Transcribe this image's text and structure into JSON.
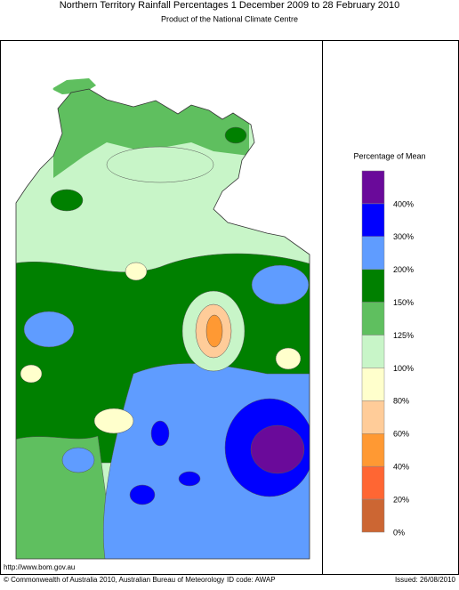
{
  "header": {
    "title": "Northern Territory Rainfall Percentages 1 December 2009 to 28 February 2010",
    "subtitle": "Product of the National Climate Centre"
  },
  "legend": {
    "title": "Percentage of Mean",
    "items": [
      {
        "label": "400%",
        "color": "#6a0a9a"
      },
      {
        "label": "300%",
        "color": "#0000ff"
      },
      {
        "label": "200%",
        "color": "#5f9cff"
      },
      {
        "label": "150%",
        "color": "#008000"
      },
      {
        "label": "125%",
        "color": "#5fbf5f"
      },
      {
        "label": "100%",
        "color": "#c8f5c8"
      },
      {
        "label": "80%",
        "color": "#ffffcc"
      },
      {
        "label": "60%",
        "color": "#ffcc99"
      },
      {
        "label": "40%",
        "color": "#ff9933"
      },
      {
        "label": "20%",
        "color": "#ff6633"
      },
      {
        "label": "0%",
        "color": "#cc6633"
      }
    ]
  },
  "footer": {
    "url": "http://www.bom.gov.au",
    "copyright": "© Commonwealth of Australia 2010, Australian Bureau of Meteorology",
    "id_code": "ID code: AWAP",
    "issued": "Issued: 26/08/2010"
  }
}
